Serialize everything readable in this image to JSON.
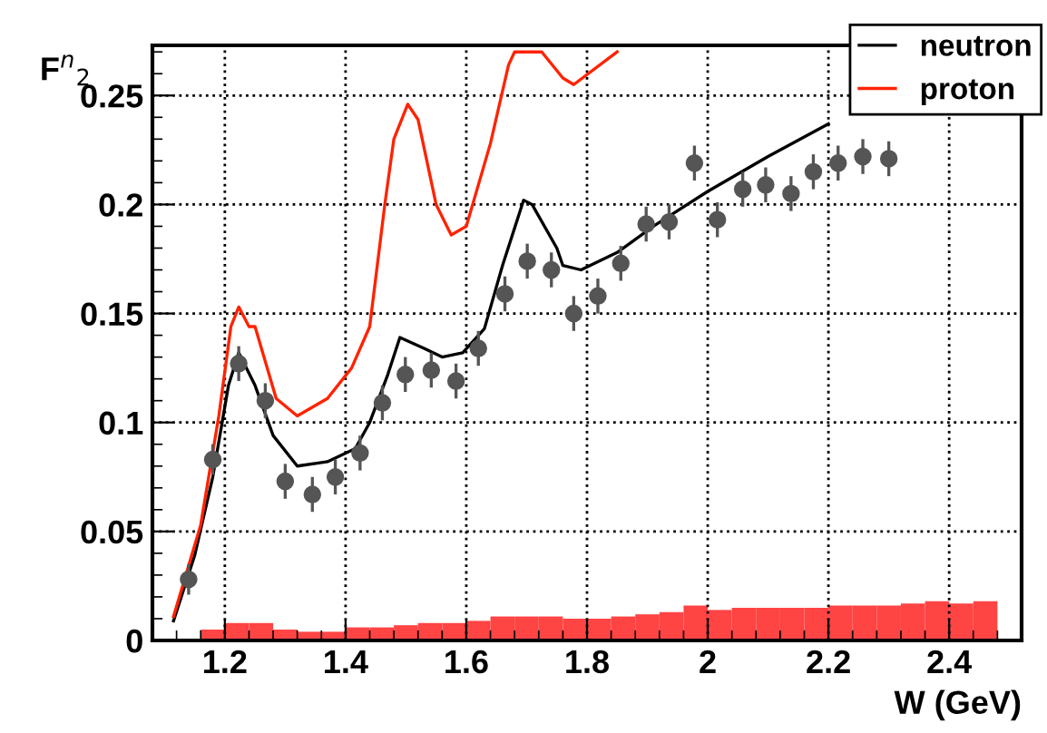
{
  "chart_data": {
    "type": "line",
    "xlabel": "W (GeV)",
    "ylabel": "F$^{n}$$_{2}$",
    "xlim": [
      1.08,
      2.52
    ],
    "xticks": [
      1.2,
      1.4,
      1.6,
      1.8,
      2,
      2.2,
      2.4
    ],
    "ylim": [
      0,
      0.273
    ],
    "yticks": [
      0,
      0.05,
      0.1,
      0.15,
      0.2,
      0.25
    ],
    "grid": true,
    "legend": "top right",
    "series": [
      {
        "name": "neutron",
        "color": "#000000",
        "x": [
          1.115,
          1.15,
          1.18,
          1.206,
          1.223,
          1.25,
          1.28,
          1.32,
          1.37,
          1.416,
          1.44,
          1.47,
          1.49,
          1.53,
          1.56,
          1.594,
          1.63,
          1.66,
          1.695,
          1.709,
          1.75,
          1.76,
          1.79,
          1.85,
          1.91,
          2.0,
          2.1,
          2.2
        ],
        "values": [
          0.009,
          0.039,
          0.075,
          0.117,
          0.132,
          0.117,
          0.094,
          0.08,
          0.082,
          0.088,
          0.1,
          0.122,
          0.139,
          0.134,
          0.13,
          0.132,
          0.143,
          0.172,
          0.202,
          0.2,
          0.18,
          0.172,
          0.17,
          0.178,
          0.19,
          0.206,
          0.222,
          0.237
        ]
      },
      {
        "name": "proton",
        "type": "line",
        "color": "#ff2200",
        "x": [
          1.115,
          1.16,
          1.19,
          1.21,
          1.223,
          1.24,
          1.25,
          1.285,
          1.32,
          1.37,
          1.41,
          1.44,
          1.465,
          1.48,
          1.503,
          1.52,
          1.55,
          1.575,
          1.6,
          1.64,
          1.67,
          1.68,
          1.725,
          1.76,
          1.778,
          1.85
        ],
        "values": [
          0.011,
          0.053,
          0.103,
          0.144,
          0.153,
          0.144,
          0.144,
          0.111,
          0.103,
          0.111,
          0.125,
          0.144,
          0.2,
          0.23,
          0.246,
          0.239,
          0.2,
          0.186,
          0.19,
          0.228,
          0.264,
          0.27,
          0.27,
          0.258,
          0.255,
          0.27
        ]
      },
      {
        "type": "scatter",
        "color": "#555555",
        "marker": "circle",
        "x": [
          1.14,
          1.18,
          1.223,
          1.267,
          1.3,
          1.345,
          1.383,
          1.424,
          1.461,
          1.499,
          1.542,
          1.583,
          1.62,
          1.664,
          1.701,
          1.741,
          1.778,
          1.818,
          1.856,
          1.898,
          1.936,
          1.978,
          2.016,
          2.058,
          2.096,
          2.138,
          2.175,
          2.216,
          2.257,
          2.3
        ],
        "values": [
          0.028,
          0.083,
          0.127,
          0.11,
          0.073,
          0.067,
          0.075,
          0.086,
          0.109,
          0.122,
          0.124,
          0.119,
          0.134,
          0.159,
          0.174,
          0.17,
          0.15,
          0.158,
          0.173,
          0.191,
          0.192,
          0.219,
          0.193,
          0.207,
          0.209,
          0.205,
          0.215,
          0.219,
          0.222,
          0.221
        ],
        "errors": [
          0.007,
          0.007,
          0.008,
          0.008,
          0.008,
          0.008,
          0.008,
          0.008,
          0.008,
          0.008,
          0.008,
          0.008,
          0.008,
          0.008,
          0.008,
          0.008,
          0.008,
          0.008,
          0.008,
          0.008,
          0.008,
          0.008,
          0.008,
          0.008,
          0.008,
          0.008,
          0.008,
          0.008,
          0.008,
          0.008
        ]
      },
      {
        "type": "histogram",
        "color": "#ff4444",
        "bins": [
          1.12,
          1.16,
          1.2,
          1.24,
          1.28,
          1.32,
          1.36,
          1.4,
          1.44,
          1.48,
          1.52,
          1.56,
          1.6,
          1.64,
          1.68,
          1.72,
          1.76,
          1.8,
          1.84,
          1.88,
          1.92,
          1.96,
          2.0,
          2.04,
          2.08,
          2.12,
          2.16,
          2.2,
          2.24,
          2.28,
          2.32,
          2.36,
          2.4,
          2.44,
          2.48
        ],
        "values": [
          null,
          0.005,
          0.008,
          0.008,
          0.005,
          0.004,
          0.004,
          0.006,
          0.006,
          0.007,
          0.008,
          0.008,
          0.009,
          0.011,
          0.011,
          0.011,
          0.01,
          0.01,
          0.011,
          0.012,
          0.013,
          0.016,
          0.014,
          0.015,
          0.015,
          0.015,
          0.015,
          0.016,
          0.016,
          0.016,
          0.017,
          0.018,
          0.017,
          0.018
        ]
      }
    ]
  }
}
